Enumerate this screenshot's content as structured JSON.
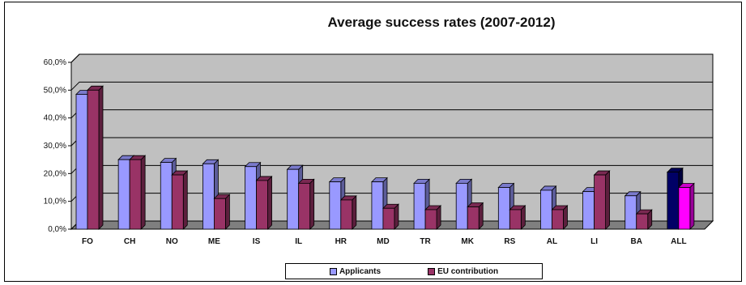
{
  "chart_data": {
    "type": "bar",
    "title": "Average success rates (2007-2012)",
    "categories": [
      "FO",
      "CH",
      "NO",
      "ME",
      "IS",
      "IL",
      "HR",
      "MD",
      "TR",
      "MK",
      "RS",
      "AL",
      "LI",
      "BA",
      "ALL"
    ],
    "series": [
      {
        "name": "Applicants",
        "values": [
          48.5,
          25.0,
          24.0,
          23.5,
          22.5,
          21.5,
          17.0,
          17.0,
          16.5,
          16.5,
          15.0,
          14.0,
          13.5,
          12.0,
          20.5
        ],
        "color": "#9999ff",
        "highlight_color": "#000066"
      },
      {
        "name": "EU contribution",
        "values": [
          50.0,
          25.0,
          19.5,
          11.0,
          17.5,
          16.5,
          10.5,
          7.5,
          7.0,
          8.0,
          7.0,
          7.0,
          19.5,
          5.5,
          15.0
        ],
        "color": "#993366",
        "highlight_color": "#ff00ff"
      }
    ],
    "y_ticks": [
      "0,0%",
      "10,0%",
      "20,0%",
      "30,0%",
      "40,0%",
      "50,0%",
      "60,0%"
    ],
    "ylim": [
      0,
      60
    ],
    "grid": true,
    "legend_position": "bottom",
    "colors": {
      "plot_wall": "#c0c0c0",
      "floor": "#7f7f7f",
      "gridline": "#000000"
    }
  }
}
